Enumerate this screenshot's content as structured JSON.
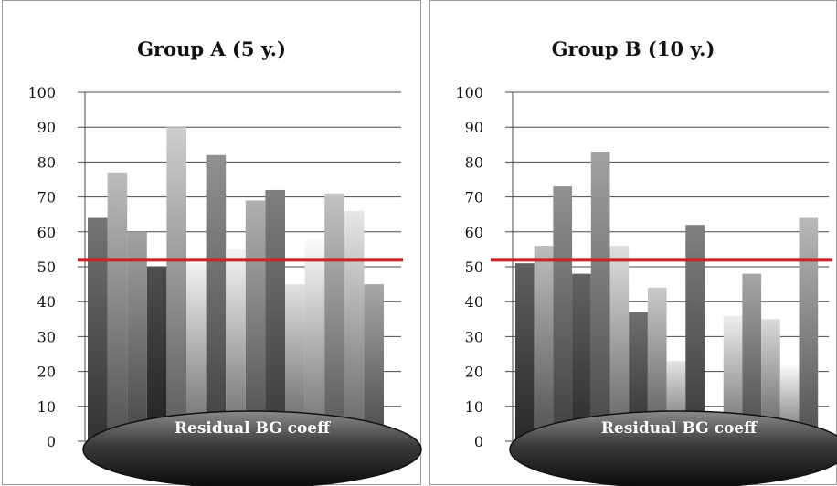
{
  "chart_data": [
    {
      "type": "bar",
      "title": "Group A (5 y.)",
      "ylim": [
        0,
        100
      ],
      "yticks": [
        "0",
        "10",
        "20",
        "30",
        "40",
        "50",
        "60",
        "70",
        "80",
        "90",
        "100"
      ],
      "values": [
        64,
        77,
        60,
        50,
        90,
        51,
        82,
        55,
        69,
        72,
        45,
        58,
        71,
        66,
        45
      ],
      "colors": [
        "#6e6e6e",
        "#b3b3b3",
        "#9a9a9a",
        "#4a4a4a",
        "#c4c4c4",
        "#e6e6e6",
        "#8a8a8a",
        "#e8e8e8",
        "#a8a8a8",
        "#7a7a7a",
        "#d6d6d6",
        "#f0f0f0",
        "#bababa",
        "#dcdcdc",
        "#a0a0a0"
      ],
      "reference_line": {
        "value": 52,
        "color": "#d0202a"
      },
      "ellipse_label": "Residual BG coeff",
      "grid": true,
      "legend": "none"
    },
    {
      "type": "bar",
      "title": "Group B (10 y.)",
      "ylim": [
        0,
        100
      ],
      "yticks": [
        "0",
        "10",
        "20",
        "30",
        "40",
        "50",
        "60",
        "70",
        "80",
        "90",
        "100"
      ],
      "values": [
        51,
        56,
        73,
        48,
        83,
        56,
        37,
        44,
        23,
        62,
        0,
        36,
        48,
        35,
        22,
        64
      ],
      "colors": [
        "#5a5a5a",
        "#b5b5b5",
        "#8a8a8a",
        "#5e5e5e",
        "#9a9a9a",
        "#d4d4d4",
        "#6a6a6a",
        "#c0c0c0",
        "#dadada",
        "#7a7a7a",
        "#ffffff",
        "#e4e4e4",
        "#9e9e9e",
        "#d0d0d0",
        "#f0f0f0",
        "#b0b0b0"
      ],
      "reference_line": {
        "value": 52,
        "color": "#d0202a"
      },
      "ellipse_label": "Residual BG coeff",
      "grid": true,
      "legend": "none"
    }
  ]
}
